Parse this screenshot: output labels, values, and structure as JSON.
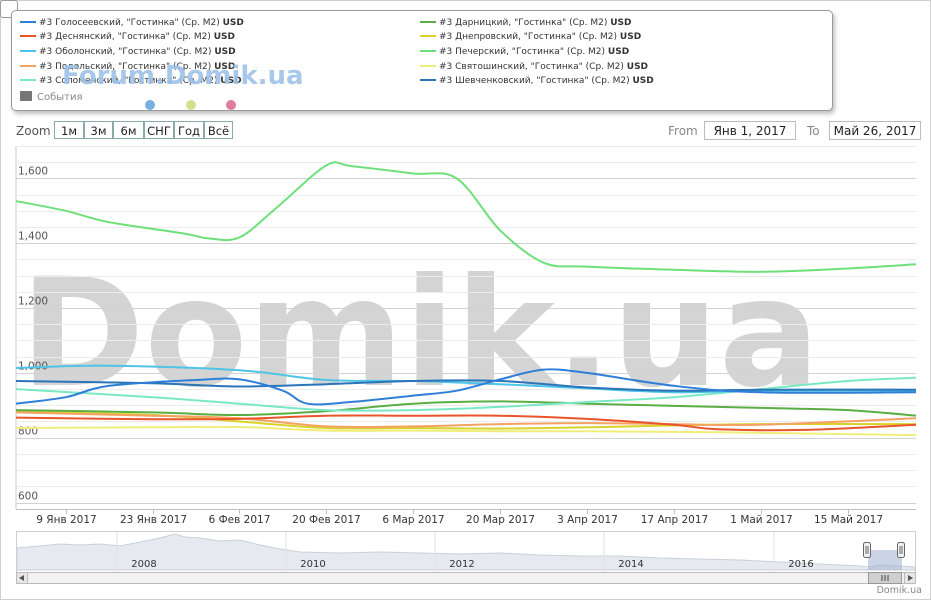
{
  "legend": {
    "items": [
      {
        "label": "#3 Голосеевский, \"Гостинка\" (Ср. М2)",
        "unit": "USD",
        "color": "#2f7ed8"
      },
      {
        "label": "#3 Деснянский, \"Гостинка\" (Ср. М2)",
        "unit": "USD",
        "color": "#e8552a"
      },
      {
        "label": "#3 Оболонский, \"Гостинка\" (Ср. М2)",
        "unit": "USD",
        "color": "#4fc3e8"
      },
      {
        "label": "#3 Подольский, \"Гостинка\" (Ср. М2)",
        "unit": "USD",
        "color": "#f4a263"
      },
      {
        "label": "#3 Соломенский, \"Гостинка\" (Ср. М2)",
        "unit": "USD",
        "color": "#7ae8c4"
      },
      {
        "label": "#3 Дарницкий, \"Гостинка\" (Ср. М2)",
        "unit": "USD",
        "color": "#5aae44"
      },
      {
        "label": "#3 Днепровский, \"Гостинка\" (Ср. М2)",
        "unit": "USD",
        "color": "#d8d22a"
      },
      {
        "label": "#3 Печерский, \"Гостинка\" (Ср. М2)",
        "unit": "USD",
        "color": "#6ee07a"
      },
      {
        "label": "#3 Святошинский, \"Гостинка\" (Ср. М2)",
        "unit": "USD",
        "color": "#f0ee7a"
      },
      {
        "label": "#3 Шевченковский, \"Гостинка\" (Ср. М2)",
        "unit": "USD",
        "color": "#2a74b8"
      }
    ],
    "events_label": "События",
    "events_color": "#777777",
    "event_dot_colors": [
      "#7aaee0",
      "#d4df8a",
      "#e07a9e"
    ]
  },
  "watermarks": {
    "forum": "Forum.Domik.ua",
    "big": "Domik.ua"
  },
  "range_selector": {
    "zoom_label": "Zoom",
    "buttons": [
      "1м",
      "3м",
      "6м",
      "СНГ",
      "Год",
      "Всё"
    ],
    "from_label": "From",
    "from_value": "Янв 1, 2017",
    "to_label": "To",
    "to_value": "Май 26, 2017"
  },
  "navigator": {
    "year_labels": [
      "2008",
      "2010",
      "2012",
      "2014",
      "2016"
    ]
  },
  "credit": "Domik.ua",
  "chart_data": {
    "type": "line",
    "x_start": "2017-01-01",
    "x_end": "2017-05-26",
    "ylim": [
      580,
      1700
    ],
    "y_ticks": [
      600,
      800,
      1000,
      1200,
      1400,
      1600
    ],
    "y_tick_labels": [
      "600",
      "800",
      "1,000",
      "1,200",
      "1,400",
      "1,600"
    ],
    "x_ticks": [
      "2017-01-09",
      "2017-01-23",
      "2017-02-06",
      "2017-02-20",
      "2017-03-06",
      "2017-03-20",
      "2017-04-03",
      "2017-04-17",
      "2017-05-01",
      "2017-05-15"
    ],
    "x_tick_labels": [
      "9 Янв 2017",
      "23 Янв 2017",
      "6 Фев 2017",
      "20 Фев 2017",
      "6 Мар 2017",
      "20 Мар 2017",
      "3 Апр 2017",
      "17 Апр 2017",
      "1 Май 2017",
      "15 Май 2017"
    ],
    "grid": true,
    "legend": "top",
    "series": [
      {
        "name": "#3 Голосеевский, \"Гостинка\" (Ср. М2)",
        "color": "#2f7ed8",
        "points": [
          [
            "2017-01-01",
            905
          ],
          [
            "2017-01-09",
            925
          ],
          [
            "2017-01-16",
            960
          ],
          [
            "2017-01-30",
            978
          ],
          [
            "2017-02-06",
            980
          ],
          [
            "2017-02-13",
            945
          ],
          [
            "2017-02-17",
            905
          ],
          [
            "2017-02-24",
            910
          ],
          [
            "2017-03-06",
            930
          ],
          [
            "2017-03-13",
            945
          ],
          [
            "2017-03-20",
            980
          ],
          [
            "2017-03-27",
            1010
          ],
          [
            "2017-04-03",
            1000
          ],
          [
            "2017-04-17",
            960
          ],
          [
            "2017-05-01",
            940
          ],
          [
            "2017-05-26",
            940
          ]
        ]
      },
      {
        "name": "#3 Деснянский, \"Гостинка\" (Ср. М2)",
        "color": "#e8552a",
        "points": [
          [
            "2017-01-01",
            862
          ],
          [
            "2017-01-23",
            857
          ],
          [
            "2017-02-06",
            858
          ],
          [
            "2017-02-20",
            868
          ],
          [
            "2017-03-06",
            868
          ],
          [
            "2017-03-20",
            868
          ],
          [
            "2017-04-03",
            858
          ],
          [
            "2017-04-17",
            840
          ],
          [
            "2017-04-24",
            826
          ],
          [
            "2017-05-08",
            824
          ],
          [
            "2017-05-26",
            840
          ]
        ]
      },
      {
        "name": "#3 Оболонский, \"Гостинка\" (Ср. М2)",
        "color": "#4fc3e8",
        "points": [
          [
            "2017-01-01",
            1015
          ],
          [
            "2017-01-16",
            1022
          ],
          [
            "2017-02-06",
            1008
          ],
          [
            "2017-02-20",
            978
          ],
          [
            "2017-03-06",
            975
          ],
          [
            "2017-03-20",
            965
          ],
          [
            "2017-04-03",
            952
          ],
          [
            "2017-04-17",
            940
          ],
          [
            "2017-05-01",
            945
          ],
          [
            "2017-05-26",
            945
          ]
        ]
      },
      {
        "name": "#3 Подольский, \"Гостинка\" (Ср. М2)",
        "color": "#f4a263",
        "points": [
          [
            "2017-01-01",
            878
          ],
          [
            "2017-01-23",
            868
          ],
          [
            "2017-02-06",
            860
          ],
          [
            "2017-02-20",
            835
          ],
          [
            "2017-03-06",
            835
          ],
          [
            "2017-03-20",
            842
          ],
          [
            "2017-04-03",
            845
          ],
          [
            "2017-04-17",
            842
          ],
          [
            "2017-05-01",
            840
          ],
          [
            "2017-05-26",
            860
          ]
        ]
      },
      {
        "name": "#3 Соломенский, \"Гостинка\" (Ср. М2)",
        "color": "#7ae8c4",
        "points": [
          [
            "2017-01-01",
            950
          ],
          [
            "2017-01-23",
            925
          ],
          [
            "2017-02-06",
            905
          ],
          [
            "2017-02-20",
            885
          ],
          [
            "2017-03-06",
            885
          ],
          [
            "2017-03-20",
            895
          ],
          [
            "2017-04-03",
            910
          ],
          [
            "2017-04-17",
            925
          ],
          [
            "2017-05-01",
            950
          ],
          [
            "2017-05-15",
            975
          ],
          [
            "2017-05-26",
            985
          ]
        ]
      },
      {
        "name": "#3 Дарницкий, \"Гостинка\" (Ср. М2)",
        "color": "#5aae44",
        "points": [
          [
            "2017-01-01",
            885
          ],
          [
            "2017-01-23",
            878
          ],
          [
            "2017-02-06",
            870
          ],
          [
            "2017-02-20",
            882
          ],
          [
            "2017-03-06",
            905
          ],
          [
            "2017-03-20",
            912
          ],
          [
            "2017-04-03",
            905
          ],
          [
            "2017-04-17",
            898
          ],
          [
            "2017-05-01",
            892
          ],
          [
            "2017-05-15",
            885
          ],
          [
            "2017-05-26",
            868
          ]
        ]
      },
      {
        "name": "#3 Днепровский, \"Гостинка\" (Ср. М2)",
        "color": "#d8d22a",
        "points": [
          [
            "2017-01-01",
            880
          ],
          [
            "2017-01-23",
            870
          ],
          [
            "2017-02-06",
            850
          ],
          [
            "2017-02-20",
            830
          ],
          [
            "2017-03-06",
            830
          ],
          [
            "2017-03-20",
            828
          ],
          [
            "2017-04-03",
            832
          ],
          [
            "2017-04-17",
            838
          ],
          [
            "2017-05-01",
            842
          ],
          [
            "2017-05-26",
            842
          ]
        ]
      },
      {
        "name": "#3 Печерский, \"Гостинка\" (Ср. М2)",
        "color": "#6ee07a",
        "points": [
          [
            "2017-01-01",
            1530
          ],
          [
            "2017-01-09",
            1500
          ],
          [
            "2017-01-16",
            1465
          ],
          [
            "2017-01-28",
            1430
          ],
          [
            "2017-02-01",
            1415
          ],
          [
            "2017-02-06",
            1418
          ],
          [
            "2017-02-12",
            1510
          ],
          [
            "2017-02-20",
            1640
          ],
          [
            "2017-02-24",
            1638
          ],
          [
            "2017-03-06",
            1615
          ],
          [
            "2017-03-13",
            1600
          ],
          [
            "2017-03-20",
            1440
          ],
          [
            "2017-03-27",
            1340
          ],
          [
            "2017-04-03",
            1328
          ],
          [
            "2017-04-17",
            1318
          ],
          [
            "2017-05-01",
            1312
          ],
          [
            "2017-05-15",
            1322
          ],
          [
            "2017-05-26",
            1335
          ]
        ]
      },
      {
        "name": "#3 Святошинский, \"Гостинка\" (Ср. М2)",
        "color": "#f0ee7a",
        "points": [
          [
            "2017-01-01",
            830
          ],
          [
            "2017-01-23",
            832
          ],
          [
            "2017-02-06",
            833
          ],
          [
            "2017-02-20",
            822
          ],
          [
            "2017-03-06",
            822
          ],
          [
            "2017-03-20",
            820
          ],
          [
            "2017-04-03",
            820
          ],
          [
            "2017-04-17",
            818
          ],
          [
            "2017-05-01",
            815
          ],
          [
            "2017-05-26",
            808
          ]
        ]
      },
      {
        "name": "#3 Шевченковский, \"Гостинка\" (Ср. М2)",
        "color": "#2a74b8",
        "points": [
          [
            "2017-01-01",
            975
          ],
          [
            "2017-01-23",
            968
          ],
          [
            "2017-02-06",
            958
          ],
          [
            "2017-02-20",
            965
          ],
          [
            "2017-03-06",
            975
          ],
          [
            "2017-03-20",
            975
          ],
          [
            "2017-04-03",
            955
          ],
          [
            "2017-04-17",
            945
          ],
          [
            "2017-05-01",
            948
          ],
          [
            "2017-05-26",
            948
          ]
        ]
      }
    ]
  }
}
